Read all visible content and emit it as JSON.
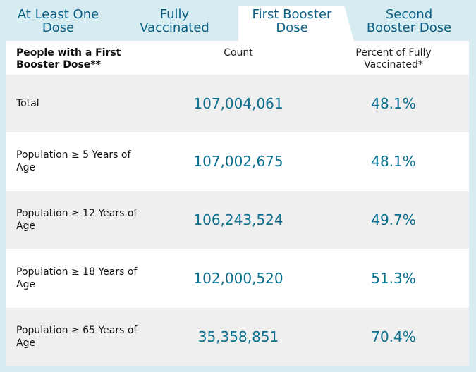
{
  "tabs": [
    {
      "line1": "At Least One",
      "line2": "Dose"
    },
    {
      "line1": "Fully",
      "line2": "Vaccinated"
    },
    {
      "line1": "First Booster",
      "line2": "Dose"
    },
    {
      "line1": "Second",
      "line2": "Booster Dose"
    }
  ],
  "active_tab": "First Booster Dose",
  "table": {
    "headers": {
      "label": "People with a First Booster Dose**",
      "count": "Count",
      "percent": "Percent of Fully Vaccinated*"
    },
    "rows": [
      {
        "label": "Total",
        "count": "107,004,061",
        "percent": "48.1%"
      },
      {
        "label": "Population ≥ 5 Years of Age",
        "count": "107,002,675",
        "percent": "48.1%"
      },
      {
        "label": "Population ≥ 12 Years of Age",
        "count": "106,243,524",
        "percent": "49.7%"
      },
      {
        "label": "Population ≥ 18 Years of Age",
        "count": "102,000,520",
        "percent": "51.3%"
      },
      {
        "label": "Population ≥ 65 Years of Age",
        "count": "35,358,851",
        "percent": "70.4%"
      }
    ]
  },
  "colors": {
    "background": "#d6ecf1",
    "tab_text": "#0a5f86",
    "value_text": "#0a6f8f",
    "row_shade": "#efefef"
  }
}
